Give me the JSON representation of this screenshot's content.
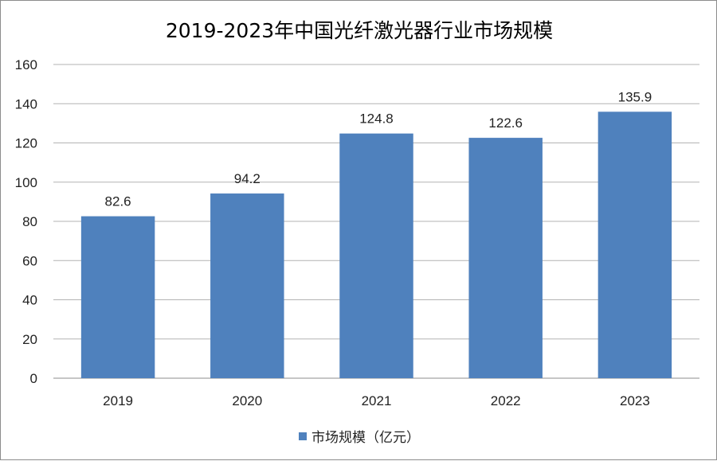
{
  "chart_data": {
    "type": "bar",
    "title": "2019-2023年中国光纤激光器行业市场规模",
    "categories": [
      "2019",
      "2020",
      "2021",
      "2022",
      "2023"
    ],
    "series": [
      {
        "name": "市场规模（亿元）",
        "values": [
          82.6,
          94.2,
          124.8,
          122.6,
          135.9
        ]
      }
    ],
    "data_labels": [
      "82.6",
      "94.2",
      "124.8",
      "122.6",
      "135.9"
    ],
    "ylim": [
      0,
      160
    ],
    "yticks": [
      0,
      20,
      40,
      60,
      80,
      100,
      120,
      140,
      160
    ],
    "grid": true,
    "legend_position": "bottom",
    "colors": {
      "bar": "#4f81bd",
      "grid": "#b3b3b3",
      "axis": "#8c8c8c",
      "text": "#222222"
    }
  }
}
